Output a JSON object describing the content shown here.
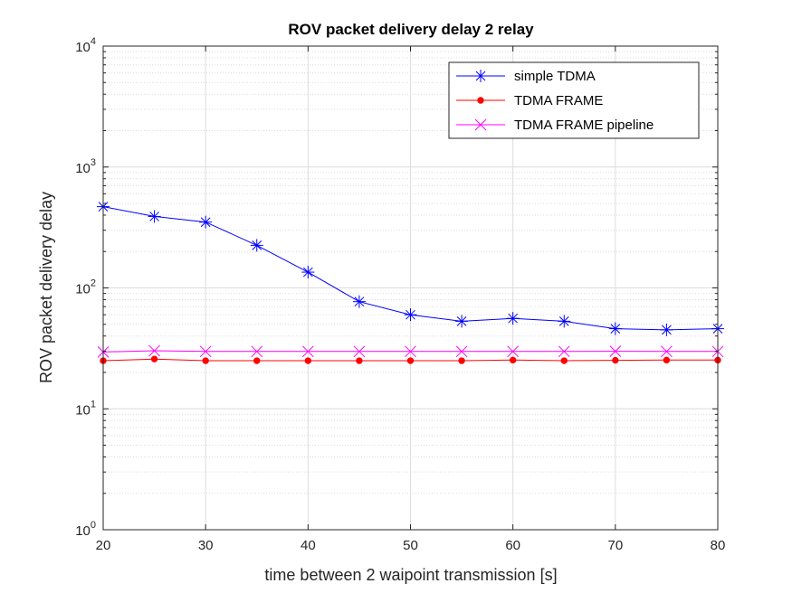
{
  "colors": {
    "background": "#ffffff",
    "grid": "#dcdcdc",
    "axis": "#262626"
  },
  "chart_data": {
    "type": "line",
    "title": "ROV packet delivery delay 2 relay",
    "xlabel": "time between 2 waipoint transmission [s]",
    "ylabel": "ROV packet delivery delay",
    "xlim": [
      20,
      80
    ],
    "ylim": [
      1,
      10000
    ],
    "yscale": "log",
    "grid": true,
    "legend_position": "top-right",
    "x_ticks": [
      "20",
      "30",
      "40",
      "50",
      "60",
      "70",
      "80"
    ],
    "y_ticks": [
      {
        "base": "10",
        "exp": "0"
      },
      {
        "base": "10",
        "exp": "1"
      },
      {
        "base": "10",
        "exp": "2"
      },
      {
        "base": "10",
        "exp": "3"
      },
      {
        "base": "10",
        "exp": "4"
      }
    ],
    "x": [
      20,
      25,
      30,
      35,
      40,
      45,
      50,
      55,
      60,
      65,
      70,
      75,
      80
    ],
    "series": [
      {
        "name": "simple TDMA",
        "color": "#0000ff",
        "marker": "asterisk",
        "values": [
          470,
          390,
          350,
          225,
          135,
          77,
          60,
          53,
          56,
          53,
          46,
          45,
          46
        ]
      },
      {
        "name": "TDMA FRAME",
        "color": "#ff0000",
        "marker": "dot",
        "values": [
          25,
          25.8,
          25,
          25,
          25,
          25,
          25,
          25,
          25.3,
          25,
          25.2,
          25.3,
          25.3
        ]
      },
      {
        "name": "TDMA FRAME pipeline",
        "color": "#ff00ff",
        "marker": "x",
        "values": [
          29.5,
          30.2,
          29.8,
          29.8,
          29.8,
          29.8,
          29.8,
          29.8,
          29.8,
          29.8,
          29.9,
          29.8,
          29.8
        ]
      }
    ]
  }
}
